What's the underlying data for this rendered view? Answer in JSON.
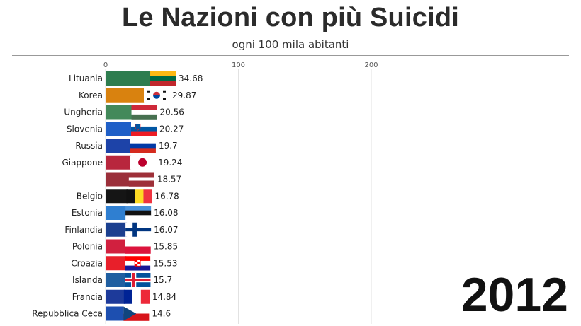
{
  "title": "Le Nazioni con più Suicidi",
  "subtitle": "ogni 100 mila abitanti",
  "year": "2012",
  "chart_data": {
    "type": "bar",
    "orientation": "horizontal",
    "title": "Le Nazioni con più Suicidi",
    "subtitle": "ogni 100 mila abitanti",
    "xlim": [
      0,
      350
    ],
    "x_ticks": [
      0,
      100,
      200
    ],
    "grid": true,
    "categories": [
      "Lituania",
      "Korea",
      "Ungheria",
      "Slovenia",
      "Russia",
      "Giappone",
      "",
      "Belgio",
      "Estonia",
      "Finlandia",
      "Polonia",
      "Croazia",
      "Islanda",
      "Francia",
      "Repubblica Ceca"
    ],
    "values": [
      34.68,
      29.87,
      20.56,
      20.27,
      19.7,
      19.24,
      18.57,
      16.78,
      16.08,
      16.07,
      15.85,
      15.53,
      15.7,
      14.84,
      14.6
    ],
    "value_labels": [
      "34.68",
      "29.87",
      "20.56",
      "20.27",
      "19.7",
      "19.24",
      "18.57",
      "16.78",
      "16.08",
      "16.07",
      "15.85",
      "15.53",
      "15.7",
      "14.84",
      "14.6"
    ],
    "bar_colors": [
      "#2e7d4f",
      "#d9820f",
      "#43895a",
      "#1f5fc7",
      "#1d43a8",
      "#b8263d",
      "#9b2f3a",
      "#151515",
      "#2f7fd1",
      "#1b3f8f",
      "#d1203f",
      "#e81f2a",
      "#1f5ea0",
      "#1d3a9a",
      "#1d4fb0"
    ],
    "flags": [
      "lithuania",
      "south-korea",
      "hungary",
      "slovenia",
      "russia",
      "japan",
      "latvia",
      "belgium",
      "estonia",
      "finland",
      "poland",
      "croatia",
      "iceland",
      "france",
      "czech-republic"
    ]
  }
}
